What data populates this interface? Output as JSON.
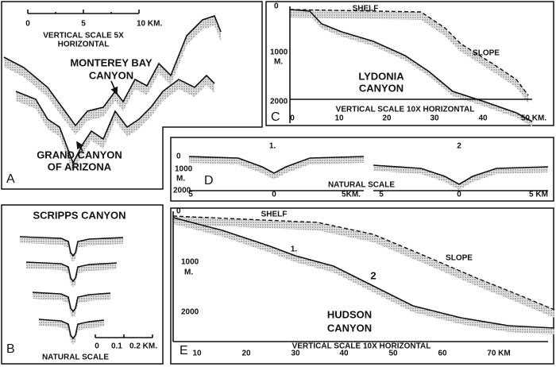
{
  "panels": {
    "a": {
      "label": "A",
      "scale_ticks": [
        "0",
        "5",
        "10 KM."
      ],
      "scale_note": [
        "VERTICAL SCALE 5X",
        "HORIZONTAL"
      ],
      "labels": [
        "MONTEREY BAY",
        "CANYON",
        "GRAND CANYON",
        "OF ARIZONA"
      ]
    },
    "b": {
      "label": "B",
      "title": "SCRIPPS CANYON",
      "scale_ticks": [
        "0",
        "0.1",
        "0.2 KM."
      ],
      "scale_note": "NATURAL SCALE"
    },
    "c": {
      "label": "C",
      "depth_ticks": [
        "0",
        "1000",
        "2000"
      ],
      "depth_unit": "M.",
      "distance_ticks": [
        "0",
        "10",
        "20",
        "30",
        "40",
        "50 KM."
      ],
      "scale_note": "VERTICAL SCALE 10X HORIZONTAL",
      "labels": [
        "SHELF",
        "SLOPE",
        "LYDONIA",
        "CANYON"
      ]
    },
    "d": {
      "label": "D",
      "depth_ticks": [
        "0",
        "1000",
        "2000"
      ],
      "depth_unit": "M.",
      "profile_labels": [
        "1.",
        "2"
      ],
      "distance_ticks_1": [
        "5",
        "0",
        "5KM."
      ],
      "distance_ticks_2": [
        "5",
        "0",
        "5 KM"
      ],
      "scale_note": "NATURAL SCALE"
    },
    "e": {
      "label": "E",
      "depth_ticks": [
        "0",
        "1000",
        "2000"
      ],
      "depth_unit": "M.",
      "distance_ticks": [
        "10",
        "20",
        "30",
        "40",
        "50",
        "60",
        "70 KM"
      ],
      "scale_note": "VERTICAL SCALE 10X HORIZONTAL",
      "labels": [
        "SHELF",
        "SLOPE",
        "1.",
        "2",
        "HUDSON",
        "CANYON"
      ]
    }
  }
}
